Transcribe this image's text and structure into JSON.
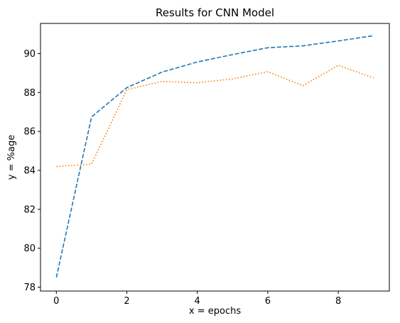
{
  "chart_data": {
    "type": "line",
    "title": "Results for CNN Model",
    "xlabel": "x = epochs",
    "ylabel": "y = %age",
    "xlim": [
      -0.45,
      9.45
    ],
    "ylim": [
      77.8,
      91.55
    ],
    "xticks": [
      0,
      2,
      4,
      6,
      8
    ],
    "yticks": [
      78,
      80,
      82,
      84,
      86,
      88,
      90
    ],
    "grid": false,
    "legend": "none",
    "x": [
      0,
      1,
      2,
      3,
      4,
      5,
      6,
      7,
      8,
      9
    ],
    "series": [
      {
        "values": [
          78.5,
          86.75,
          88.25,
          89.05,
          89.57,
          89.95,
          90.3,
          90.4,
          90.65,
          90.92
        ],
        "color": "#1f77b4",
        "style": "dashed"
      },
      {
        "values": [
          84.2,
          84.32,
          88.15,
          88.57,
          88.5,
          88.7,
          89.07,
          88.35,
          89.4,
          88.75
        ],
        "color": "#ff7f0e",
        "style": "dotted"
      }
    ]
  }
}
